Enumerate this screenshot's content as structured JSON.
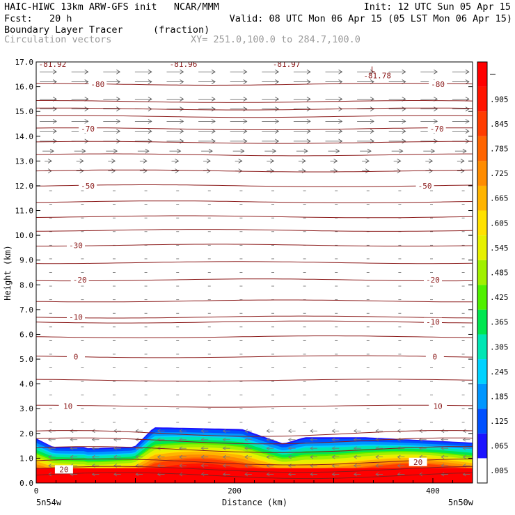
{
  "header": {
    "line1_left": "HAIC-HIWC 13km ARW-GFS init   NCAR/MMM",
    "line1_right": "Init: 12 UTC Sun 05 Apr 15",
    "line2_left": "Fcst:   20 h",
    "line2_right": "Valid: 08 UTC Mon 06 Apr 15 (05 LST Mon 06 Apr 15)",
    "line3_left": "Boundary Layer Tracer",
    "line3_mid": "(fraction)",
    "line4_left": "Circulation vectors",
    "line4_mid": "XY= 251.0,100.0 to 284.7,100.0"
  },
  "chart_data": {
    "type": "cross-section",
    "xlabel": "Distance (km)",
    "ylabel": "Height (km)",
    "xlim": [
      0,
      440
    ],
    "ylim": [
      0,
      17
    ],
    "x_ticks": [
      {
        "value": 0,
        "label": "0"
      },
      {
        "value": 200,
        "label": "200"
      },
      {
        "value": 400,
        "label": "400"
      }
    ],
    "x_end_labels": {
      "left": "5n54w",
      "right": "5n50w"
    },
    "y_ticks": [
      "0.0",
      "1.0",
      "2.0",
      "3.0",
      "4.0",
      "5.0",
      "6.0",
      "7.0",
      "8.0",
      "9.0",
      "10.0",
      "11.0",
      "12.0",
      "13.0",
      "14.0",
      "15.0",
      "16.0",
      "17.0"
    ],
    "colorbar": {
      "labels": [
        ".005",
        ".065",
        ".125",
        ".185",
        ".245",
        ".305",
        ".365",
        ".425",
        ".485",
        ".545",
        ".605",
        ".665",
        ".725",
        ".785",
        ".845",
        ".905"
      ],
      "colors": [
        "#ffffff",
        "#1c14ff",
        "#0050ff",
        "#0096ff",
        "#00d2ff",
        "#00e6b4",
        "#00e650",
        "#50f000",
        "#a0f000",
        "#e6f000",
        "#ffe100",
        "#ffb400",
        "#ff8c00",
        "#ff6400",
        "#ff3c00",
        "#ff1400",
        "#ff0000"
      ]
    },
    "temperature_contours": [
      {
        "label": "20",
        "height": 0.55,
        "label_x": 28
      },
      {
        "label": "20",
        "height": 0.85,
        "label_x": 385
      },
      {
        "label": "10",
        "height": 3.1,
        "label_x": 32
      },
      {
        "label": "10",
        "height": 3.1,
        "label_x": 405
      },
      {
        "label": "0",
        "height": 5.1,
        "label_x": 40
      },
      {
        "label": "0",
        "height": 5.1,
        "label_x": 402
      },
      {
        "label": "-10",
        "height": 6.7,
        "label_x": 40
      },
      {
        "label": "-10",
        "height": 6.5,
        "label_x": 400
      },
      {
        "label": "-20",
        "height": 8.2,
        "label_x": 44
      },
      {
        "label": "-20",
        "height": 8.2,
        "label_x": 400
      },
      {
        "label": "-30",
        "height": 9.6,
        "label_x": 40
      },
      {
        "label": "-50",
        "height": 12.0,
        "label_x": 52
      },
      {
        "label": "-50",
        "height": 12.0,
        "label_x": 392
      },
      {
        "label": "-70",
        "height": 14.3,
        "label_x": 52
      },
      {
        "label": "-70",
        "height": 14.3,
        "label_x": 404
      },
      {
        "label": "-80",
        "height": 16.1,
        "label_x": 62
      },
      {
        "label": "-80",
        "height": 16.1,
        "label_x": 405
      }
    ],
    "plain_contour_heights": [
      0.3,
      1.35,
      1.7,
      2.0,
      4.15,
      5.9,
      7.35,
      8.9,
      10.2,
      10.75,
      11.35,
      12.6,
      13.25,
      13.75,
      14.8,
      15.1,
      15.4
    ],
    "minima": [
      {
        "label": "-81.92",
        "x": 8
      },
      {
        "label": "-81.96",
        "x": 140
      },
      {
        "label": "-81.97",
        "x": 244
      },
      {
        "label": "-81.78",
        "x": 344,
        "marker": "L"
      }
    ]
  }
}
